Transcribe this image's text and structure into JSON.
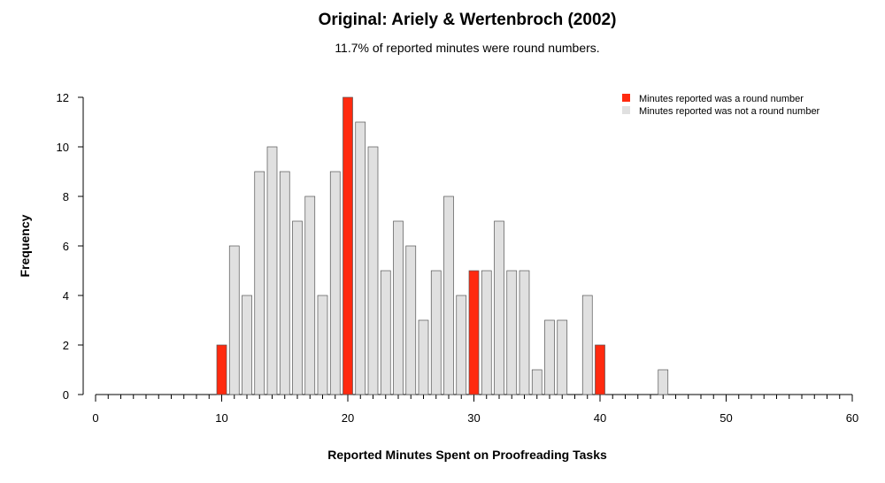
{
  "chart_data": {
    "type": "bar",
    "title": "Original: Ariely & Wertenbroch (2002)",
    "subtitle": "11.7% of reported minutes were round numbers.",
    "xlabel": "Reported Minutes Spent on Proofreading Tasks",
    "ylabel": "Frequency",
    "xlim": [
      0,
      60
    ],
    "ylim": [
      0,
      12
    ],
    "x_ticks": [
      "0",
      "10",
      "20",
      "30",
      "40",
      "50",
      "60"
    ],
    "y_ticks": [
      "0",
      "2",
      "4",
      "6",
      "8",
      "10",
      "12"
    ],
    "grid": false,
    "legend_position": "top-right",
    "series": [
      {
        "name": "Minutes reported was a round number",
        "color": "#ff2a0f",
        "x": [
          10,
          20,
          30,
          40
        ],
        "values": [
          2,
          12,
          5,
          2
        ]
      },
      {
        "name": "Minutes reported was not a round number",
        "color": "#e0e0e0",
        "x": [
          11,
          12,
          13,
          14,
          15,
          16,
          17,
          18,
          19,
          21,
          22,
          23,
          24,
          25,
          26,
          27,
          28,
          29,
          31,
          32,
          33,
          34,
          35,
          36,
          37,
          39,
          45
        ],
        "values": [
          6,
          4,
          9,
          10,
          9,
          7,
          8,
          4,
          9,
          11,
          10,
          5,
          7,
          6,
          3,
          5,
          8,
          4,
          5,
          7,
          5,
          5,
          1,
          3,
          3,
          4,
          1
        ]
      }
    ]
  }
}
